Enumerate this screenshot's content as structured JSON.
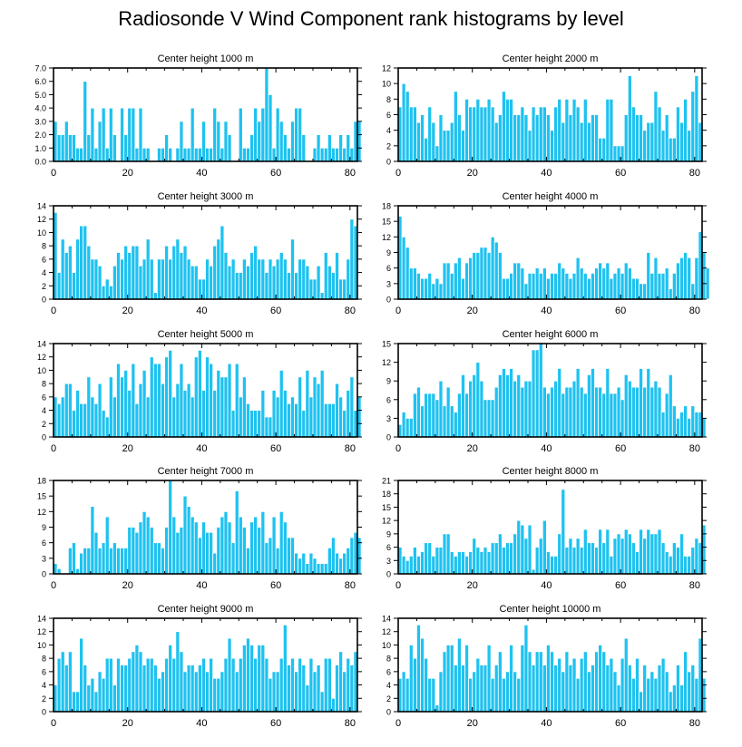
{
  "title": "Radiosonde V Wind Component rank histograms by level",
  "colors": {
    "bar": "#1ec2f0",
    "bar_stroke": "#ffffff",
    "axis": "#000000"
  },
  "chart_data": [
    {
      "type": "bar",
      "title": "Center height 1000 m",
      "xlim": [
        0,
        82
      ],
      "ylim": [
        0,
        7
      ],
      "xticks": [
        0,
        20,
        40,
        60,
        80
      ],
      "yticks": [
        0,
        1,
        2,
        3,
        4,
        5,
        6,
        7
      ],
      "ytick_labels": [
        "0.0",
        "1.0",
        "2.0",
        "3.0",
        "4.0",
        "5.0",
        "6.0",
        "7.0"
      ],
      "values": [
        3,
        2,
        2,
        3,
        2,
        2,
        1,
        1,
        6,
        2,
        4,
        1,
        3,
        4,
        1,
        4,
        2,
        0,
        4,
        2,
        4,
        4,
        1,
        4,
        1,
        1,
        0,
        0,
        1,
        1,
        2,
        1,
        0,
        1,
        3,
        1,
        1,
        4,
        1,
        1,
        3,
        1,
        1,
        4,
        3,
        1,
        3,
        2,
        0,
        0,
        4,
        1,
        1,
        2,
        4,
        3,
        4,
        7,
        5,
        1,
        4,
        3,
        2,
        1,
        3,
        4,
        4,
        2,
        0,
        0,
        1,
        2,
        1,
        1,
        2,
        1,
        1,
        2,
        1,
        2,
        1,
        3,
        3
      ]
    },
    {
      "type": "bar",
      "title": "Center height 2000 m",
      "xlim": [
        0,
        82
      ],
      "ylim": [
        0,
        12
      ],
      "xticks": [
        0,
        20,
        40,
        60,
        80
      ],
      "yticks": [
        0,
        2,
        4,
        6,
        8,
        10,
        12
      ],
      "ytick_labels": [
        "0",
        "2",
        "4",
        "6",
        "8",
        "10",
        "12"
      ],
      "values": [
        7,
        10,
        9,
        7,
        7,
        5,
        6,
        3,
        7,
        5,
        2,
        6,
        4,
        4,
        5,
        9,
        6,
        4,
        8,
        7,
        7,
        8,
        7,
        7,
        8,
        7,
        5,
        6,
        9,
        8,
        8,
        6,
        6,
        7,
        6,
        4,
        7,
        6,
        7,
        7,
        6,
        4,
        7,
        8,
        5,
        8,
        6,
        8,
        7,
        5,
        8,
        5,
        6,
        6,
        3,
        3,
        8,
        8,
        2,
        2,
        2,
        6,
        11,
        7,
        6,
        6,
        4,
        5,
        5,
        9,
        7,
        4,
        6,
        3,
        3,
        7,
        5,
        8,
        4,
        9,
        11,
        5
      ]
    },
    {
      "type": "bar",
      "title": "Center height 3000 m",
      "xlim": [
        0,
        82
      ],
      "ylim": [
        0,
        14
      ],
      "xticks": [
        0,
        20,
        40,
        60,
        80
      ],
      "yticks": [
        0,
        2,
        4,
        6,
        8,
        10,
        12,
        14
      ],
      "ytick_labels": [
        "0",
        "2",
        "4",
        "6",
        "8",
        "10",
        "12",
        "14"
      ],
      "values": [
        13,
        4,
        9,
        7,
        8,
        4,
        9,
        11,
        11,
        8,
        6,
        6,
        5,
        2,
        3,
        2,
        5,
        7,
        6,
        8,
        7,
        8,
        8,
        5,
        6,
        9,
        6,
        1,
        6,
        6,
        8,
        6,
        8,
        9,
        7,
        8,
        6,
        5,
        5,
        3,
        3,
        6,
        5,
        8,
        9,
        11,
        7,
        5,
        6,
        4,
        4,
        6,
        5,
        7,
        8,
        6,
        6,
        4,
        6,
        5,
        6,
        7,
        6,
        4,
        9,
        4,
        6,
        6,
        5,
        3,
        3,
        5,
        1,
        7,
        5,
        4,
        7,
        3,
        3,
        6,
        12,
        11
      ]
    },
    {
      "type": "bar",
      "title": "Center height 4000 m",
      "xlim": [
        0,
        82
      ],
      "ylim": [
        0,
        18
      ],
      "xticks": [
        0,
        20,
        40,
        60,
        80
      ],
      "yticks": [
        0,
        3,
        6,
        9,
        12,
        15,
        18
      ],
      "ytick_labels": [
        "0",
        "3",
        "6",
        "9",
        "12",
        "15",
        "18"
      ],
      "values": [
        16,
        12,
        10,
        6,
        6,
        5,
        4,
        4,
        5,
        3,
        4,
        3,
        7,
        7,
        5,
        7,
        8,
        4,
        7,
        8,
        9,
        9,
        10,
        10,
        9,
        12,
        11,
        9,
        4,
        4,
        5,
        7,
        7,
        6,
        3,
        5,
        5,
        6,
        5,
        6,
        4,
        5,
        5,
        7,
        6,
        5,
        4,
        5,
        8,
        6,
        5,
        4,
        5,
        6,
        7,
        6,
        7,
        4,
        5,
        6,
        5,
        7,
        6,
        4,
        4,
        3,
        3,
        9,
        5,
        8,
        5,
        5,
        6,
        2,
        5,
        7,
        8,
        9,
        8,
        3,
        8,
        13,
        9,
        6
      ]
    },
    {
      "type": "bar",
      "title": "Center height 5000 m",
      "xlim": [
        0,
        82
      ],
      "ylim": [
        0,
        14
      ],
      "xticks": [
        0,
        20,
        40,
        60,
        80
      ],
      "yticks": [
        0,
        2,
        4,
        6,
        8,
        10,
        12,
        14
      ],
      "ytick_labels": [
        "0",
        "2",
        "4",
        "6",
        "8",
        "10",
        "12",
        "14"
      ],
      "values": [
        6,
        5,
        6,
        8,
        8,
        4,
        7,
        5,
        5,
        9,
        6,
        5,
        8,
        4,
        3,
        9,
        6,
        11,
        9,
        10,
        7,
        11,
        5,
        8,
        10,
        6,
        12,
        11,
        11,
        8,
        12,
        13,
        6,
        8,
        11,
        7,
        8,
        6,
        12,
        13,
        7,
        12,
        11,
        7,
        10,
        9,
        9,
        11,
        4,
        11,
        6,
        9,
        5,
        4,
        4,
        4,
        7,
        3,
        3,
        7,
        6,
        10,
        7,
        5,
        6,
        5,
        9,
        4,
        10,
        6,
        9,
        8,
        10,
        5,
        5,
        5,
        8,
        6,
        4,
        7,
        9,
        4,
        6
      ]
    },
    {
      "type": "bar",
      "title": "Center height 6000 m",
      "xlim": [
        0,
        82
      ],
      "ylim": [
        0,
        15
      ],
      "xticks": [
        0,
        20,
        40,
        60,
        80
      ],
      "yticks": [
        0,
        3,
        6,
        9,
        12,
        15
      ],
      "ytick_labels": [
        "0",
        "3",
        "6",
        "9",
        "12",
        "15"
      ],
      "values": [
        2,
        4,
        3,
        3,
        7,
        8,
        5,
        7,
        7,
        7,
        6,
        9,
        5,
        8,
        5,
        4,
        7,
        10,
        7,
        9,
        10,
        12,
        9,
        6,
        6,
        6,
        8,
        10,
        11,
        10,
        11,
        9,
        10,
        8,
        9,
        9,
        14,
        14,
        15,
        8,
        7,
        8,
        9,
        11,
        7,
        8,
        8,
        9,
        11,
        8,
        7,
        10,
        11,
        8,
        8,
        7,
        11,
        7,
        7,
        8,
        6,
        10,
        9,
        8,
        8,
        11,
        8,
        11,
        8,
        9,
        8,
        4,
        7,
        10,
        5,
        3,
        4,
        5,
        3,
        5,
        4,
        4,
        3
      ]
    },
    {
      "type": "bar",
      "title": "Center height 7000 m",
      "xlim": [
        0,
        82
      ],
      "ylim": [
        0,
        18
      ],
      "xticks": [
        0,
        20,
        40,
        60,
        80
      ],
      "yticks": [
        0,
        3,
        6,
        9,
        12,
        15,
        18
      ],
      "ytick_labels": [
        "0",
        "3",
        "6",
        "9",
        "12",
        "15",
        "18"
      ],
      "values": [
        2,
        1,
        0,
        0,
        5,
        6,
        1,
        4,
        5,
        5,
        13,
        8,
        5,
        6,
        11,
        5,
        6,
        5,
        5,
        5,
        9,
        9,
        8,
        10,
        12,
        11,
        9,
        6,
        6,
        5,
        9,
        18,
        11,
        8,
        9,
        15,
        13,
        11,
        10,
        7,
        10,
        8,
        8,
        4,
        9,
        11,
        12,
        10,
        6,
        16,
        11,
        9,
        5,
        10,
        11,
        9,
        12,
        6,
        7,
        11,
        5,
        12,
        10,
        7,
        7,
        4,
        3,
        4,
        2,
        4,
        3,
        2,
        2,
        2,
        5,
        7,
        4,
        3,
        4,
        5,
        7,
        8,
        7
      ]
    },
    {
      "type": "bar",
      "title": "Center height 8000 m",
      "xlim": [
        0,
        82
      ],
      "ylim": [
        0,
        21
      ],
      "xticks": [
        0,
        20,
        40,
        60,
        80
      ],
      "yticks": [
        0,
        3,
        6,
        9,
        12,
        15,
        18,
        21
      ],
      "ytick_labels": [
        "0",
        "3",
        "6",
        "9",
        "12",
        "15",
        "18",
        "21"
      ],
      "values": [
        6,
        4,
        3,
        4,
        6,
        4,
        5,
        7,
        7,
        4,
        6,
        6,
        9,
        9,
        5,
        4,
        5,
        5,
        4,
        5,
        8,
        6,
        5,
        6,
        5,
        7,
        7,
        9,
        6,
        7,
        7,
        9,
        12,
        11,
        8,
        11,
        1,
        6,
        8,
        12,
        5,
        4,
        4,
        9,
        19,
        6,
        8,
        6,
        8,
        6,
        10,
        7,
        7,
        6,
        10,
        7,
        10,
        4,
        8,
        9,
        8,
        10,
        9,
        7,
        5,
        10,
        8,
        10,
        9,
        9,
        10,
        7,
        5,
        4,
        7,
        6,
        9,
        4,
        4,
        6,
        8,
        7,
        11
      ]
    },
    {
      "type": "bar",
      "title": "Center height 9000 m",
      "xlim": [
        0,
        82
      ],
      "ylim": [
        0,
        14
      ],
      "xticks": [
        0,
        20,
        40,
        60,
        80
      ],
      "yticks": [
        0,
        2,
        4,
        6,
        8,
        10,
        12,
        14
      ],
      "ytick_labels": [
        "0",
        "2",
        "4",
        "6",
        "8",
        "10",
        "12",
        "14"
      ],
      "values": [
        4,
        8,
        9,
        7,
        9,
        3,
        3,
        11,
        7,
        4,
        5,
        3,
        6,
        5,
        8,
        8,
        4,
        8,
        7,
        7,
        8,
        9,
        10,
        9,
        7,
        8,
        8,
        7,
        5,
        6,
        8,
        10,
        8,
        12,
        9,
        6,
        7,
        7,
        6,
        7,
        8,
        6,
        8,
        5,
        5,
        6,
        8,
        11,
        8,
        6,
        8,
        10,
        11,
        10,
        8,
        10,
        10,
        8,
        5,
        6,
        6,
        8,
        13,
        7,
        8,
        6,
        8,
        7,
        4,
        8,
        6,
        7,
        3,
        8,
        8,
        2,
        7,
        9,
        6,
        8,
        7,
        9
      ]
    },
    {
      "type": "bar",
      "title": "Center height 10000 m",
      "xlim": [
        0,
        82
      ],
      "ylim": [
        0,
        14
      ],
      "xticks": [
        0,
        20,
        40,
        60,
        80
      ],
      "yticks": [
        0,
        2,
        4,
        6,
        8,
        10,
        12,
        14
      ],
      "ytick_labels": [
        "0",
        "2",
        "4",
        "6",
        "8",
        "10",
        "12",
        "14"
      ],
      "values": [
        5,
        6,
        5,
        10,
        8,
        13,
        11,
        8,
        5,
        5,
        1,
        6,
        9,
        10,
        10,
        7,
        11,
        7,
        10,
        5,
        6,
        8,
        7,
        7,
        10,
        5,
        7,
        9,
        5,
        6,
        10,
        6,
        5,
        10,
        13,
        9,
        7,
        9,
        9,
        7,
        10,
        9,
        7,
        8,
        6,
        9,
        7,
        8,
        5,
        8,
        9,
        6,
        7,
        9,
        10,
        9,
        7,
        8,
        6,
        4,
        8,
        11,
        7,
        5,
        8,
        3,
        7,
        5,
        6,
        5,
        7,
        8,
        6,
        3,
        4,
        7,
        4,
        9,
        6,
        7,
        5,
        11,
        5
      ]
    }
  ]
}
